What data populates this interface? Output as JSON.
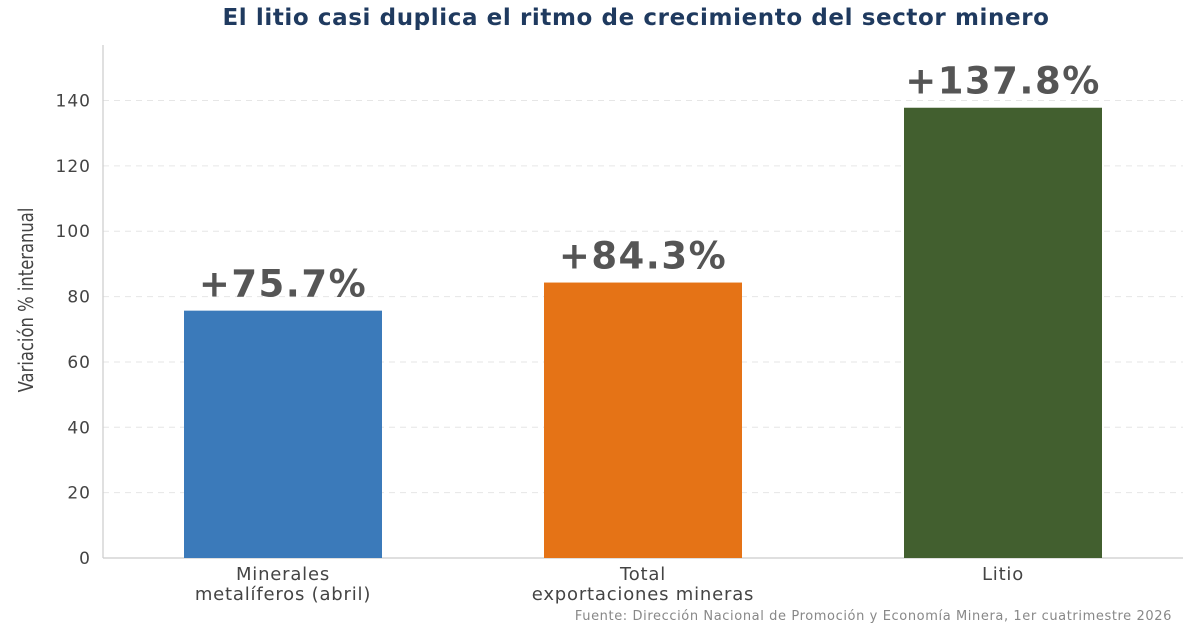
{
  "chart_data": {
    "type": "bar",
    "title": "El litio casi duplica el ritmo de crecimiento del sector minero",
    "ylabel": "Variación % interanual",
    "xlabel": "",
    "categories": [
      [
        "Minerales",
        "metalíferos (abril)"
      ],
      [
        "Total",
        "exportaciones mineras"
      ],
      [
        "Litio"
      ]
    ],
    "values": [
      75.7,
      84.3,
      137.8
    ],
    "data_labels": [
      "+75.7%",
      "+84.3%",
      "+137.8%"
    ],
    "colors": [
      "#3b7aba",
      "#e57316",
      "#425f2f"
    ],
    "ylim": [
      0,
      157
    ],
    "yticks": [
      0,
      20,
      40,
      60,
      80,
      100,
      120,
      140
    ],
    "grid": true,
    "legend": "none",
    "source": "Fuente: Dirección Nacional de Promoción y Economía Minera, 1er cuatrimestre 2026"
  }
}
